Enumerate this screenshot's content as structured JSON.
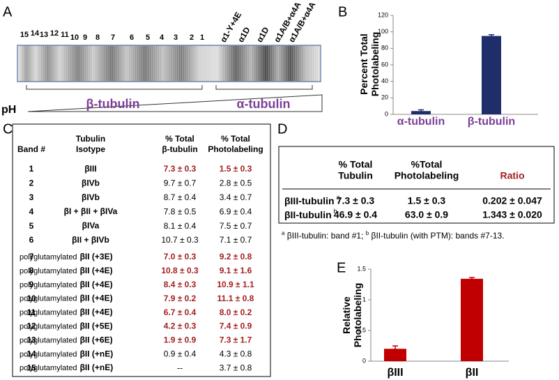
{
  "panel_letters": [
    "A",
    "B",
    "C",
    "D",
    "E"
  ],
  "gel": {
    "band_numbers": [
      "15",
      "14",
      "13",
      "12",
      "11",
      "10",
      "9",
      "8",
      "7",
      "6",
      "5",
      "4",
      "3",
      "2",
      "1"
    ],
    "alpha_bands": [
      "α1-Y+4E",
      "α1D",
      "α1D",
      "α1A/B+α4A",
      "α1A/B+α4A"
    ],
    "beta_label": "β-tubulin",
    "alpha_label": "α-tubulin",
    "ph_label": "pH",
    "group_color": "#7b3f98"
  },
  "chart_data": [
    {
      "type": "bar",
      "ylabel": "Percent Total Photolabeling",
      "categories": [
        "α-tubulin",
        "β-tubulin"
      ],
      "category_color": "#7b3f98",
      "values": [
        4,
        95
      ],
      "errors": [
        1.5,
        1.5
      ],
      "color": "#1f2d6b",
      "ylim": [
        0,
        120
      ],
      "yticks": [
        0,
        20,
        40,
        60,
        80,
        100,
        120
      ]
    },
    {
      "type": "bar",
      "ylabel": "Relative Photolabeling",
      "categories": [
        "βIII",
        "βII"
      ],
      "category_color": "#000000",
      "values": [
        0.202,
        1.343
      ],
      "errors": [
        0.047,
        0.02
      ],
      "color": "#c00000",
      "ylim": [
        0,
        1.5
      ],
      "yticks": [
        0,
        0.5,
        1,
        1.5
      ]
    }
  ],
  "table_c": {
    "headers": [
      [
        "Band #"
      ],
      [
        "Tubulin",
        "Isotype"
      ],
      [
        "% Total",
        "β-tubulin"
      ],
      [
        "% Total",
        "Photolabeling"
      ]
    ],
    "rows": [
      {
        "band": "1",
        "isotype": "βIII",
        "beta": "7.3 ± 0.3",
        "photo": "1.5 ± 0.3",
        "color": "#a31f1f"
      },
      {
        "band": "2",
        "isotype": "βIVb",
        "beta": "9.7 ± 0.7",
        "photo": "2.8 ± 0.5",
        "color": "#000000"
      },
      {
        "band": "3",
        "isotype": "βIVb",
        "beta": "8.7 ± 0.4",
        "photo": "3.4 ± 0.7",
        "color": "#000000"
      },
      {
        "band": "4",
        "isotype": "βI + βII + βIVa",
        "beta": "7.8 ± 0.5",
        "photo": "6.9 ± 0.4",
        "color": "#000000"
      },
      {
        "band": "5",
        "isotype": "βIVa",
        "beta": "8.1 ± 0.4",
        "photo": "7.5 ± 0.7",
        "color": "#000000"
      },
      {
        "band": "6",
        "isotype": "βII + βIVb",
        "beta": "10.7 ± 0.3",
        "photo": "7.1 ± 0.7",
        "color": "#000000"
      },
      {
        "band": "7",
        "prefix": "polyglutamylated",
        "isotype": "βII (+3E)",
        "beta": "7.0 ± 0.3",
        "photo": "9.2 ± 0.8",
        "color": "#a31f1f"
      },
      {
        "band": "8",
        "prefix": "polyglutamylated",
        "isotype": "βII (+4E)",
        "beta": "10.8 ± 0.3",
        "photo": "9.1 ± 1.6",
        "color": "#a31f1f"
      },
      {
        "band": "9",
        "prefix": "polyglutamylated",
        "isotype": "βII (+4E)",
        "beta": "8.4 ± 0.3",
        "photo": "10.9 ± 1.1",
        "color": "#a31f1f"
      },
      {
        "band": "10",
        "prefix": "polyglutamylated",
        "isotype": "βII (+4E)",
        "beta": "7.9 ± 0.2",
        "photo": "11.1 ± 0.8",
        "color": "#a31f1f"
      },
      {
        "band": "11",
        "prefix": "polyglutamylated",
        "isotype": "βII (+4E)",
        "beta": "6.7 ± 0.4",
        "photo": "8.0 ± 0.2",
        "color": "#a31f1f"
      },
      {
        "band": "12",
        "prefix": "polyglutamylated",
        "isotype": "βII (+5E)",
        "beta": "4.2 ± 0.3",
        "photo": "7.4 ± 0.9",
        "color": "#a31f1f"
      },
      {
        "band": "13",
        "prefix": "polyglutamylated",
        "isotype": "βII (+6E)",
        "beta": "1.9 ± 0.9",
        "photo": "7.3 ± 1.7",
        "color": "#a31f1f"
      },
      {
        "band": "14",
        "prefix": "polyglutamylated",
        "isotype": "βII (+nE)",
        "beta": "0.9 ± 0.4",
        "photo": "4.3 ± 0.8",
        "color": "#000000"
      },
      {
        "band": "15",
        "prefix": "polyglutamylated",
        "isotype": "βII (+nE)",
        "beta": "--",
        "photo": "3.7 ± 0.8",
        "color": "#000000"
      }
    ]
  },
  "table_d": {
    "headers": [
      [
        "% Total",
        "Tubulin"
      ],
      [
        "%Total",
        "Photolabeling"
      ],
      [
        "Ratio"
      ]
    ],
    "ratio_color": "#a31f1f",
    "rows": [
      {
        "label": "βIII-tubulin",
        "sup": "a",
        "tubulin": "7.3 ± 0.3",
        "photo": "1.5 ± 0.3",
        "ratio": "0.202 ± 0.047"
      },
      {
        "label": "βII-tubulin",
        "sup": "b",
        "tubulin": "46.9 ± 0.4",
        "photo": "63.0 ± 0.9",
        "ratio": "1.343 ± 0.020"
      }
    ],
    "footnote": [
      {
        "sup": "a",
        "text": " βIII-tubulin: band #1; "
      },
      {
        "sup": "b",
        "text": " βII-tubulin (with PTM): bands #7-13."
      }
    ]
  }
}
